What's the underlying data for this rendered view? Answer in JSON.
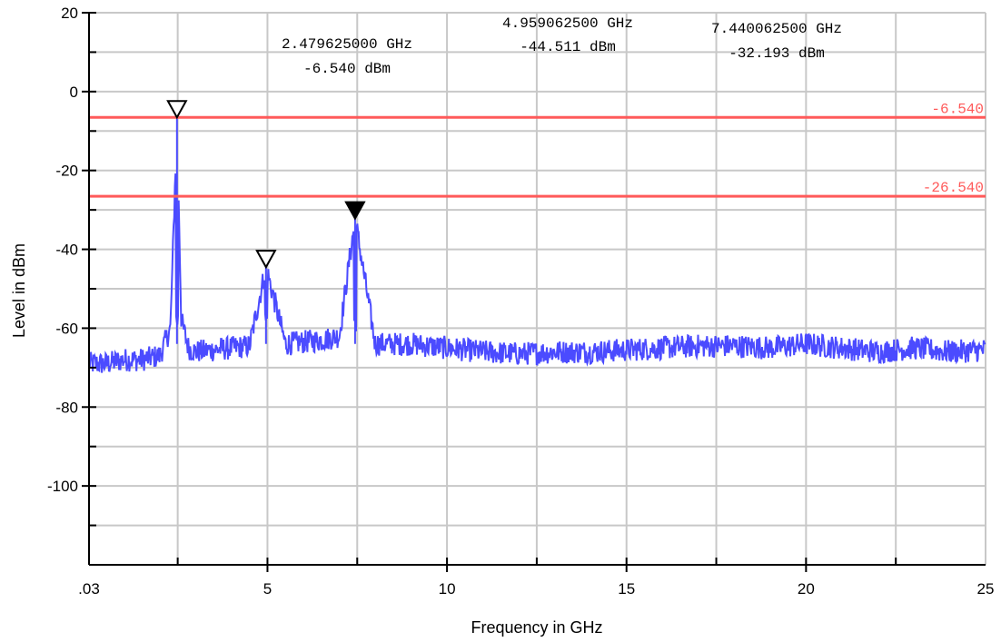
{
  "chart_data": {
    "type": "line",
    "xlabel": "Frequency in GHz",
    "ylabel": "Level in dBm",
    "xlim": [
      0.03,
      25
    ],
    "ylim": [
      -120,
      20
    ],
    "x_ticks": [
      {
        "value": 0.03,
        "label": ".03"
      },
      {
        "value": 5,
        "label": "5"
      },
      {
        "value": 10,
        "label": "10"
      },
      {
        "value": 15,
        "label": "15"
      },
      {
        "value": 20,
        "label": "20"
      },
      {
        "value": 25,
        "label": "25"
      }
    ],
    "y_ticks": [
      {
        "value": 20,
        "label": "20"
      },
      {
        "value": 0,
        "label": "0"
      },
      {
        "value": -20,
        "label": "-20"
      },
      {
        "value": -40,
        "label": "-40"
      },
      {
        "value": -60,
        "label": "-60"
      },
      {
        "value": -80,
        "label": "-80"
      },
      {
        "value": -100,
        "label": "-100"
      }
    ],
    "grid": true,
    "series": [
      {
        "color": "#4b4bff",
        "x": [
          0.03,
          0.5,
          1.0,
          1.5,
          2.0,
          2.3,
          2.48,
          2.6,
          2.8,
          3.0,
          3.5,
          4.0,
          4.5,
          4.959,
          5.5,
          6.0,
          6.5,
          7.0,
          7.44,
          8.0,
          9.0,
          10.0,
          11.0,
          12.0,
          13.0,
          14.0,
          15.0,
          16.0,
          17.0,
          18.0,
          19.0,
          20.0,
          21.0,
          22.0,
          23.0,
          24.0,
          25.0
        ],
        "y": [
          -69,
          -69,
          -68,
          -68,
          -67,
          -60,
          -6.54,
          -58,
          -65,
          -66,
          -65.5,
          -65,
          -64.5,
          -44.511,
          -64,
          -63.5,
          -63,
          -62,
          -32.193,
          -64,
          -64,
          -65,
          -66,
          -66.5,
          -66,
          -66,
          -65.5,
          -65,
          -64.5,
          -64.5,
          -65,
          -64,
          -65,
          -66,
          -65,
          -66,
          -65.5
        ],
        "noise_band_db": 3
      }
    ],
    "limit_lines": [
      {
        "value": -6.54,
        "label": "-6.540",
        "color": "#ff5a5a"
      },
      {
        "value": -26.54,
        "label": "-26.540",
        "color": "#ff5a5a"
      }
    ],
    "markers": [
      {
        "x": 2.479625,
        "y": -6.54,
        "filled": false,
        "freq_label": "2.479625000 GHz",
        "level_label": "-6.540 dBm"
      },
      {
        "x": 4.9590625,
        "y": -44.511,
        "filled": false,
        "freq_label": "4.959062500 GHz",
        "level_label": "-44.511 dBm"
      },
      {
        "x": 7.4400625,
        "y": -32.193,
        "filled": true,
        "freq_label": "7.440062500 GHz",
        "level_label": "-32.193 dBm"
      }
    ]
  }
}
